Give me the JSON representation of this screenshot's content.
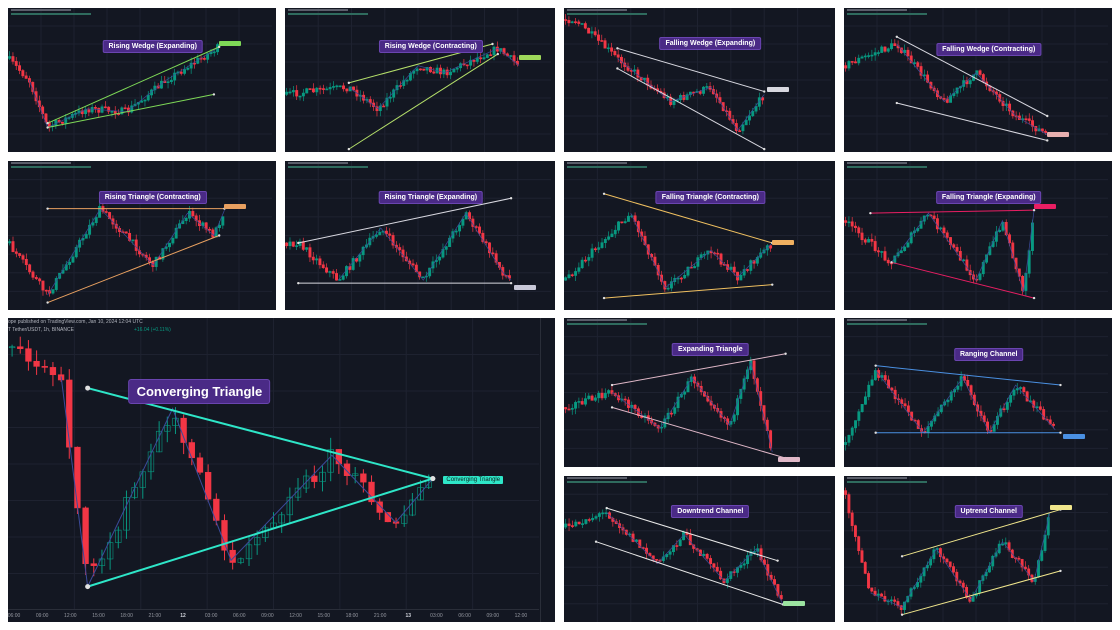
{
  "colors": {
    "background": "#131722",
    "up": "#089981",
    "down": "#f23645",
    "title_bg": "#4a2a86"
  },
  "chart_data": [
    {
      "type": "candlestick",
      "title": "Rising Wedge (Expanding)",
      "line_color": "#7ed957",
      "label_color": "#7ed957"
    },
    {
      "type": "candlestick",
      "title": "Rising Wedge (Contracting)",
      "line_color": "#b5e06a",
      "label_color": "#9ed85a"
    },
    {
      "type": "candlestick",
      "title": "Falling Wedge (Expanding)",
      "line_color": "#d8d8e0",
      "label_color": "#d8d8e0"
    },
    {
      "type": "candlestick",
      "title": "Falling Wedge (Contracting)",
      "line_color": "#d8d8e0",
      "label_color": "#e8b0b0"
    },
    {
      "type": "candlestick",
      "title": "Rising Triangle (Contracting)",
      "line_color": "#e8a060",
      "label_color": "#e8a060"
    },
    {
      "type": "candlestick",
      "title": "Rising Triangle (Expanding)",
      "line_color": "#d8d8e0",
      "label_color": "#c8c8d8"
    },
    {
      "type": "candlestick",
      "title": "Falling Triangle (Contracting)",
      "line_color": "#f0c060",
      "label_color": "#f0b060"
    },
    {
      "type": "candlestick",
      "title": "Falling Triangle (Expanding)",
      "line_color": "#e91e63",
      "label_color": "#e91e63"
    },
    {
      "type": "candlestick",
      "title": "Expanding Triangle",
      "line_color": "#e0b8c8",
      "label_color": "#e0b8c8"
    },
    {
      "type": "candlestick",
      "title": "Ranging Channel",
      "line_color": "#4a90e2",
      "label_color": "#4a90e2"
    },
    {
      "type": "candlestick",
      "title": "Downtrend Channel",
      "line_color": "#e8e8e8",
      "label_color": "#9be3a0"
    },
    {
      "type": "candlestick",
      "title": "Uptrend Channel",
      "line_color": "#f0e68c",
      "label_color": "#f0e68c"
    }
  ],
  "main_chart": {
    "type": "candlestick",
    "title": "Converging Triangle",
    "label": "Converging Triangle",
    "line_color": "#2ee6c8",
    "label_color": "#2ee6c8",
    "header": "ope published on TradingView.com, Jan 10, 2024 12:04 UTC",
    "symbol_line": "T Tether/USDT, 1h, BINANCE",
    "change": "+16.04 (+0.11%)",
    "x_ticks": [
      "06:00",
      "09:00",
      "12:00",
      "15:00",
      "18:00",
      "21:00",
      "12",
      "03:00",
      "06:00",
      "09:00",
      "12:00",
      "15:00",
      "18:00",
      "21:00",
      "13",
      "03:00",
      "06:00",
      "09:00",
      "12:00"
    ]
  }
}
